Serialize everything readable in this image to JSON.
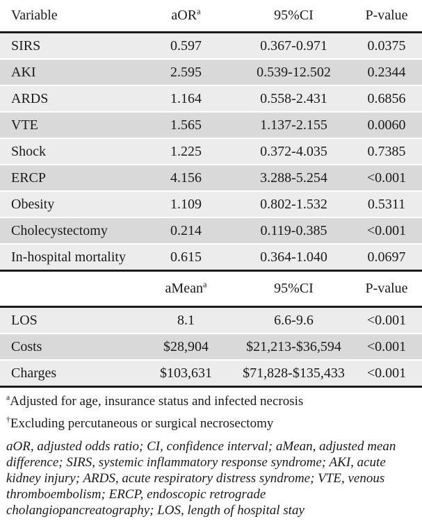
{
  "colors": {
    "row_light": "#ECECEC",
    "row_dark": "#D9D9D9",
    "text": "#1A1A1A",
    "rule": "#1A1A1A"
  },
  "table1": {
    "headers": {
      "variable": "Variable",
      "aor": "aOR",
      "aor_sup": "a",
      "ci": "95%CI",
      "p": "P-value"
    },
    "rows": [
      {
        "variable": "SIRS",
        "value": "0.597",
        "ci": "0.367-0.971",
        "p": "0.0375"
      },
      {
        "variable": "AKI",
        "value": "2.595",
        "ci": "0.539-12.502",
        "p": "0.2344"
      },
      {
        "variable": "ARDS",
        "value": "1.164",
        "ci": "0.558-2.431",
        "p": "0.6856"
      },
      {
        "variable": "VTE",
        "value": "1.565",
        "ci": "1.137-2.155",
        "p": "0.0060"
      },
      {
        "variable": "Shock",
        "value": "1.225",
        "ci": "0.372-4.035",
        "p": "0.7385"
      },
      {
        "variable": "ERCP",
        "value": "4.156",
        "ci": "3.288-5.254",
        "p": "<0.001"
      },
      {
        "variable": "Obesity",
        "value": "1.109",
        "ci": "0.802-1.532",
        "p": "0.5311"
      },
      {
        "variable": "Cholecystectomy",
        "value": "0.214",
        "ci": "0.119-0.385",
        "p": "<0.001"
      },
      {
        "variable": "In-hospital mortality",
        "value": "0.615",
        "ci": "0.364-1.040",
        "p": "0.0697"
      }
    ]
  },
  "table2": {
    "headers": {
      "variable": "",
      "amean": "aMean",
      "amean_sup": "a",
      "ci": "95%CI",
      "p": "P-value"
    },
    "rows": [
      {
        "variable": "LOS",
        "value": "8.1",
        "ci": "6.6-9.6",
        "p": "<0.001"
      },
      {
        "variable": "Costs",
        "value": "$28,904",
        "ci": "$21,213-$36,594",
        "p": "<0.001"
      },
      {
        "variable": "Charges",
        "value": "$103,631",
        "ci": "$71,828-$135,433",
        "p": "<0.001"
      }
    ]
  },
  "footnotes": {
    "fn1_sup": "a",
    "fn1": "Adjusted for age, insurance status and infected necrosis",
    "fn2_sup": "†",
    "fn2": "Excluding percutaneous or surgical necrosectomy",
    "abbreviations": "aOR, adjusted odds ratio; CI, confidence interval; aMean, adjusted mean difference; SIRS, systemic inflammatory response syndrome; AKI, acute kidney injury; ARDS, acute respiratory distress syndrome; VTE, venous thromboembolism; ERCP, endoscopic retrograde cholangiopancreatography; LOS, length of hospital stay"
  }
}
